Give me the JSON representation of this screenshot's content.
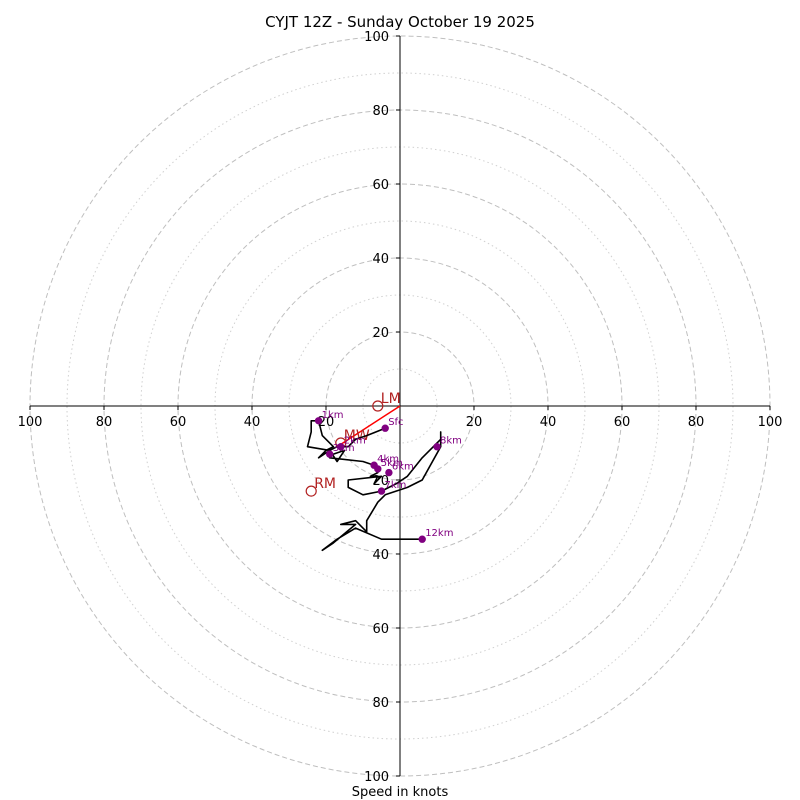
{
  "chart_data": {
    "type": "hodograph",
    "title": "CYJT 12Z - Sunday October 19 2025",
    "xlabel": "Speed in knots",
    "range": [
      -100,
      100
    ],
    "rings_major": [
      20,
      40,
      60,
      80,
      100
    ],
    "rings_minor": [
      10,
      30,
      50,
      70,
      90
    ],
    "ticks_x": [
      "100",
      "80",
      "60",
      "40",
      "20",
      "20",
      "40",
      "60",
      "80",
      "100"
    ],
    "ticks_y": [
      "100",
      "80",
      "60",
      "40",
      "20",
      "20",
      "40",
      "60",
      "80",
      "100"
    ],
    "tick_values_x": [
      -100,
      -80,
      -60,
      -40,
      -20,
      20,
      40,
      60,
      80,
      100
    ],
    "tick_values_y": [
      100,
      80,
      60,
      40,
      20,
      -20,
      -40,
      -60,
      -80,
      -100
    ],
    "hodograph_trace": [
      [
        -4,
        -6
      ],
      [
        -9,
        -8
      ],
      [
        -12,
        -9
      ],
      [
        -14,
        -11
      ],
      [
        -17,
        -11
      ],
      [
        -19,
        -12
      ],
      [
        -22,
        -14
      ],
      [
        -20,
        -12
      ],
      [
        -18,
        -11
      ],
      [
        -21,
        -8
      ],
      [
        -22,
        -4
      ],
      [
        -24,
        -4
      ],
      [
        -24,
        -7
      ],
      [
        -25,
        -11
      ],
      [
        -19,
        -12
      ],
      [
        -17,
        -15
      ],
      [
        -15,
        -12
      ],
      [
        -18,
        -13
      ],
      [
        -19,
        -14
      ],
      [
        -10,
        -15
      ],
      [
        -7,
        -16
      ],
      [
        -6,
        -18
      ],
      [
        -8,
        -19
      ],
      [
        -6,
        -19
      ],
      [
        -7,
        -21
      ],
      [
        -5,
        -19
      ],
      [
        -14,
        -20
      ],
      [
        -14,
        -22
      ],
      [
        -10,
        -24
      ],
      [
        -5,
        -23
      ],
      [
        -3,
        -22
      ],
      [
        -1,
        -21
      ],
      [
        2,
        -19
      ],
      [
        6,
        -14
      ],
      [
        11,
        -9
      ],
      [
        11,
        -7
      ],
      [
        11,
        -11
      ],
      [
        6,
        -20
      ],
      [
        2,
        -22
      ],
      [
        -4,
        -24
      ],
      [
        -6,
        -26
      ],
      [
        -9,
        -31
      ],
      [
        -9,
        -34
      ],
      [
        -12,
        -31
      ],
      [
        -16,
        -32
      ],
      [
        -12,
        -32
      ],
      [
        -18,
        -37
      ],
      [
        -21,
        -39
      ],
      [
        -17,
        -36
      ],
      [
        -12,
        -33
      ],
      [
        -5,
        -36
      ],
      [
        6,
        -36
      ]
    ],
    "height_markers": [
      {
        "label": "Sfc",
        "u": -4,
        "v": -6
      },
      {
        "label": "1km",
        "u": -22,
        "v": -4
      },
      {
        "label": "2km",
        "u": -16,
        "v": -11
      },
      {
        "label": "3km",
        "u": -19,
        "v": -13
      },
      {
        "label": "4km",
        "u": -7,
        "v": -16
      },
      {
        "label": "5km",
        "u": -6,
        "v": -17
      },
      {
        "label": "6km",
        "u": -3,
        "v": -18
      },
      {
        "label": "7km",
        "u": -5,
        "v": -23
      },
      {
        "label": "8km",
        "u": 10,
        "v": -11
      },
      {
        "label": "12km",
        "u": 6,
        "v": -36
      }
    ],
    "storm_motion": {
      "shear_vector": {
        "from": [
          0,
          0
        ],
        "to": [
          -17,
          -11
        ]
      },
      "markers": [
        {
          "label": "LM",
          "u": -6,
          "v": 0
        },
        {
          "label": "MW",
          "u": -16,
          "v": -10
        },
        {
          "label": "RM",
          "u": -24,
          "v": -23
        }
      ]
    }
  },
  "colors": {
    "ring": "#bfbfbf",
    "axis": "#000000",
    "trace": "#000000",
    "marker": "#800080",
    "storm": "#b22222",
    "shear": "#ff0000"
  }
}
